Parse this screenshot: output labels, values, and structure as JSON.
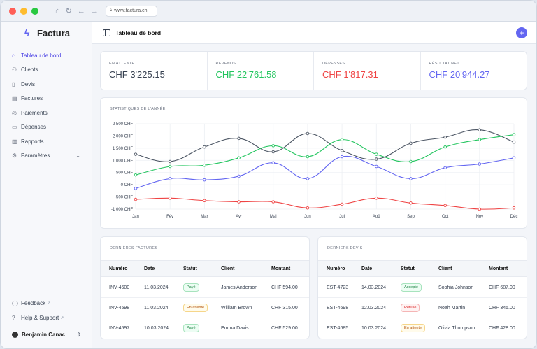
{
  "browser": {
    "url": "www.factura.ch"
  },
  "brand": {
    "name": "Factura"
  },
  "sidebar": {
    "items": [
      {
        "label": "Tableau de bord",
        "icon": "home-icon",
        "active": true
      },
      {
        "label": "Clients",
        "icon": "users-icon"
      },
      {
        "label": "Devis",
        "icon": "file-icon"
      },
      {
        "label": "Factures",
        "icon": "file-text-icon"
      },
      {
        "label": "Paiements",
        "icon": "coins-icon"
      },
      {
        "label": "Dépenses",
        "icon": "receipt-icon"
      },
      {
        "label": "Rapports",
        "icon": "bar-chart-icon"
      },
      {
        "label": "Paramètres",
        "icon": "gear-icon"
      }
    ],
    "feedback": "Feedback",
    "help": "Help & Support",
    "user": "Benjamin Canac"
  },
  "header": {
    "title": "Tableau de bord"
  },
  "stats": [
    {
      "label": "EN ATTENTE",
      "value": "CHF 3'225.15",
      "color": "#374151"
    },
    {
      "label": "REVENUS",
      "value": "CHF 22'761.58",
      "color": "#22c55e"
    },
    {
      "label": "DÉPENSES",
      "value": "CHF 1'817.31",
      "color": "#ef4444"
    },
    {
      "label": "RÉSULTAT NET",
      "value": "CHF 20'944.27",
      "color": "#6366f1"
    }
  ],
  "chart_title": "STATISTIQUES DE L'ANNÉE",
  "chart_data": {
    "type": "line",
    "categories": [
      "Jan",
      "Fév",
      "Mar",
      "Avr",
      "Mai",
      "Jun",
      "Jul",
      "Aoû",
      "Sep",
      "Oct",
      "Nov",
      "Déc"
    ],
    "ytick_labels": [
      "2 500 CHF",
      "2 000 CHF",
      "1 500 CHF",
      "1 000 CHF",
      "500 CHF",
      "0 CHF",
      "-500 CHF",
      "-1 000 CHF"
    ],
    "yticks": [
      2500,
      2000,
      1500,
      1000,
      500,
      0,
      -500,
      -1000
    ],
    "ylim": [
      -1000,
      2500
    ],
    "grid": true,
    "series": [
      {
        "color": "#4b5563",
        "values": [
          1250,
          950,
          1550,
          1900,
          1350,
          2100,
          1400,
          1050,
          1700,
          1950,
          2250,
          1750
        ]
      },
      {
        "color": "#22c55e",
        "values": [
          400,
          750,
          800,
          1100,
          1600,
          1150,
          1850,
          1250,
          950,
          1550,
          1850,
          2050
        ]
      },
      {
        "color": "#6366f1",
        "values": [
          -150,
          250,
          200,
          350,
          900,
          250,
          1150,
          750,
          250,
          700,
          850,
          1100
        ]
      },
      {
        "color": "#ef4444",
        "values": [
          -600,
          -550,
          -650,
          -700,
          -700,
          -950,
          -800,
          -550,
          -750,
          -850,
          -1000,
          -950
        ]
      }
    ]
  },
  "invoices": {
    "title": "DERNIÈRES FACTURES",
    "columns": [
      "Numéro",
      "Date",
      "Statut",
      "Client",
      "Montant"
    ],
    "rows": [
      {
        "num": "INV-4600",
        "date": "11.03.2024",
        "status": "Payé",
        "tone": "green",
        "client": "James Anderson",
        "amount": "CHF 594.00"
      },
      {
        "num": "INV-4598",
        "date": "11.03.2024",
        "status": "En attente",
        "tone": "yellow",
        "client": "William Brown",
        "amount": "CHF 315.00"
      },
      {
        "num": "INV-4597",
        "date": "10.03.2024",
        "status": "Payé",
        "tone": "green",
        "client": "Emma Davis",
        "amount": "CHF 529.00"
      }
    ]
  },
  "quotes": {
    "title": "DERNIERS DEVIS",
    "columns": [
      "Numéro",
      "Date",
      "Statut",
      "Client",
      "Montant"
    ],
    "rows": [
      {
        "num": "EST-4723",
        "date": "14.03.2024",
        "status": "Accepté",
        "tone": "green",
        "client": "Sophia Johnson",
        "amount": "CHF 687.00"
      },
      {
        "num": "EST-4698",
        "date": "12.03.2024",
        "status": "Refusé",
        "tone": "red",
        "client": "Noah Martin",
        "amount": "CHF 345.00"
      },
      {
        "num": "EST-4685",
        "date": "10.03.2024",
        "status": "En attente",
        "tone": "yellow",
        "client": "Olivia Thompson",
        "amount": "CHF 428.00"
      }
    ]
  }
}
